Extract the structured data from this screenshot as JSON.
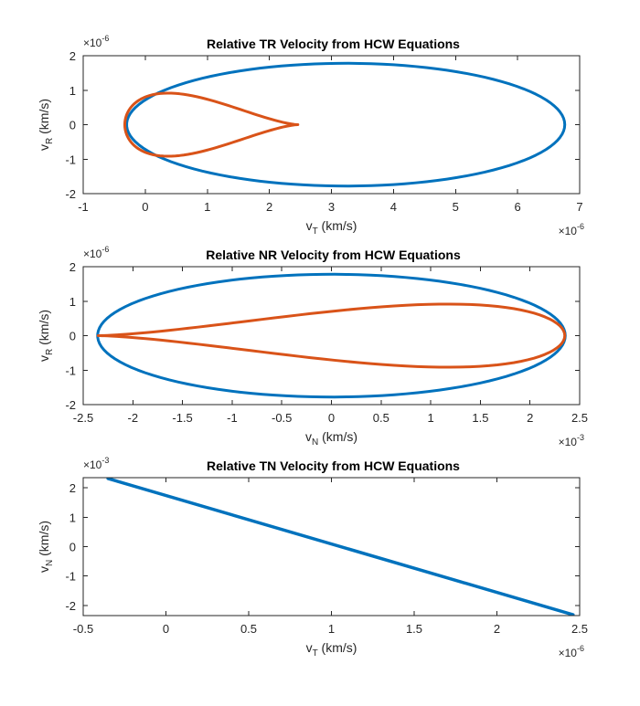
{
  "colors": {
    "blue": "#0072BD",
    "orange": "#D95319",
    "axis": "#262626"
  },
  "chart_data": [
    {
      "type": "line",
      "title": "Relative TR Velocity from HCW Equations",
      "xlabel": {
        "base": "v",
        "sub": "T",
        "unit": " (km/s)"
      },
      "ylabel": {
        "base": "v",
        "sub": "R",
        "unit": " (km/s)"
      },
      "x_multiplier": {
        "base": "×10",
        "exp": "-6"
      },
      "y_multiplier": {
        "base": "×10",
        "exp": "-6"
      },
      "xlim": [
        -1,
        7
      ],
      "ylim": [
        -2,
        2
      ],
      "xticks": [
        -1,
        0,
        1,
        2,
        3,
        4,
        5,
        6,
        7
      ],
      "yticks": [
        -2,
        -1,
        0,
        1,
        2
      ],
      "xtick_labels": [
        "-1",
        "0",
        "1",
        "2",
        "3",
        "4",
        "5",
        "6",
        "7"
      ],
      "ytick_labels": [
        "-2",
        "-1",
        "0",
        "1",
        "2"
      ],
      "series": [
        {
          "color": "#0072BD",
          "shape": "ellipse",
          "center": [
            3.23,
            0
          ],
          "radii": [
            3.53,
            1.78
          ],
          "points": 121
        },
        {
          "color": "#D95319",
          "shape": "teardrop",
          "x_range": [
            -0.33,
            2.46
          ],
          "y_amplitude": 0.915,
          "points": 121
        }
      ]
    },
    {
      "type": "line",
      "title": "Relative NR Velocity from HCW Equations",
      "xlabel": {
        "base": "v",
        "sub": "N",
        "unit": " (km/s)"
      },
      "ylabel": {
        "base": "v",
        "sub": "R",
        "unit": " (km/s)"
      },
      "x_multiplier": {
        "base": "×10",
        "exp": "-3"
      },
      "y_multiplier": {
        "base": "×10",
        "exp": "-6"
      },
      "xlim": [
        -2.5,
        2.5
      ],
      "ylim": [
        -2,
        2
      ],
      "xticks": [
        -2.5,
        -2,
        -1.5,
        -1,
        -0.5,
        0,
        0.5,
        1,
        1.5,
        2,
        2.5
      ],
      "yticks": [
        -2,
        -1,
        0,
        1,
        2
      ],
      "xtick_labels": [
        "-2.5",
        "-2",
        "-1.5",
        "-1",
        "-0.5",
        "0",
        "0.5",
        "1",
        "1.5",
        "2",
        "2.5"
      ],
      "ytick_labels": [
        "-2",
        "-1",
        "0",
        "1",
        "2"
      ],
      "series": [
        {
          "color": "#0072BD",
          "shape": "ellipse",
          "center": [
            0,
            0
          ],
          "radii": [
            2.355,
            1.78
          ],
          "points": 121
        },
        {
          "color": "#D95319",
          "shape": "teardrop",
          "x_range": [
            2.35,
            -2.35
          ],
          "y_amplitude": 0.915,
          "points": 121
        }
      ]
    },
    {
      "type": "line",
      "title": "Relative TN Velocity from HCW Equations",
      "xlabel": {
        "base": "v",
        "sub": "T",
        "unit": " (km/s)"
      },
      "ylabel": {
        "base": "v",
        "sub": "N",
        "unit": " (km/s)"
      },
      "x_multiplier": {
        "base": "×10",
        "exp": "-6"
      },
      "y_multiplier": {
        "base": "×10",
        "exp": "-3"
      },
      "xlim": [
        -0.5,
        2.5
      ],
      "ylim": [
        -2.35,
        2.35
      ],
      "xticks": [
        -0.5,
        0,
        0.5,
        1,
        1.5,
        2,
        2.5
      ],
      "yticks": [
        -2,
        -1,
        0,
        1,
        2
      ],
      "xtick_labels": [
        "-0.5",
        "0",
        "0.5",
        "1",
        "1.5",
        "2",
        "2.5"
      ],
      "ytick_labels": [
        "-2",
        "-1",
        "0",
        "1",
        "2"
      ],
      "series": [
        {
          "color": "#0072BD",
          "shape": "line",
          "x": [
            -0.35,
            2.46
          ],
          "y": [
            2.32,
            -2.32
          ]
        }
      ]
    }
  ]
}
